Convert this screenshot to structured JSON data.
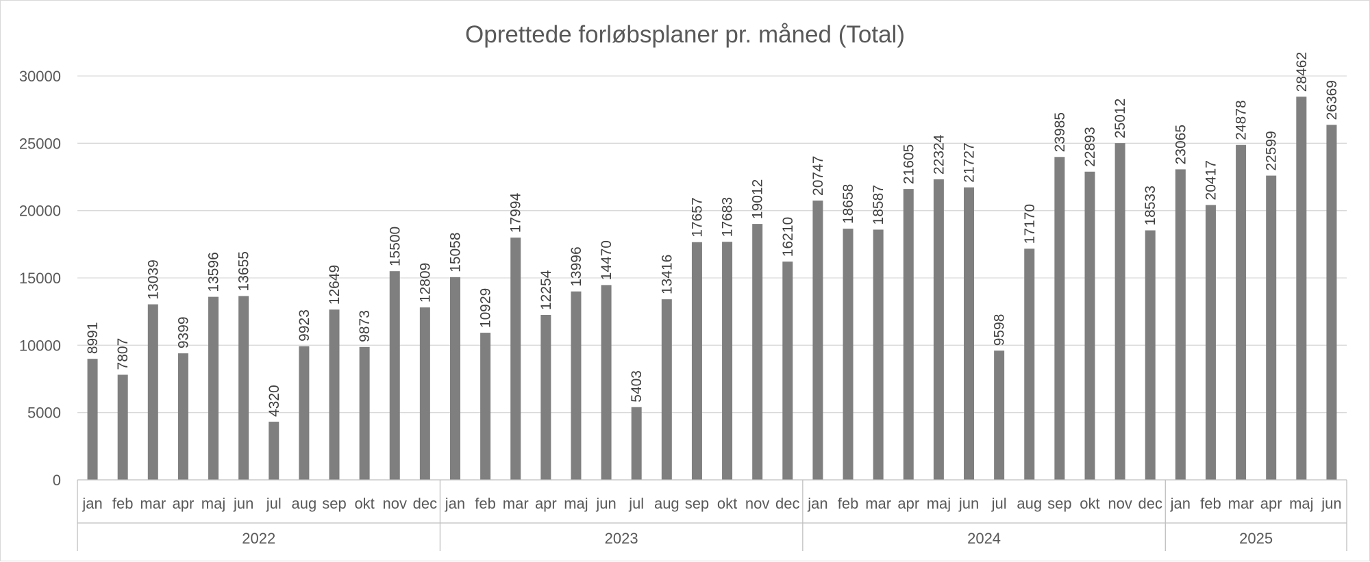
{
  "chart_data": {
    "type": "bar",
    "title": "Oprettede forløbsplaner pr. måned (Total)",
    "xlabel": "",
    "ylabel": "",
    "ylim": [
      0,
      30000
    ],
    "yticks": [
      "0",
      "5000",
      "10000",
      "15000",
      "20000",
      "25000",
      "30000"
    ],
    "grid": true,
    "legend": "none",
    "bar_color": "#7f7f7f",
    "years": [
      {
        "label": "2022",
        "months": [
          "jan",
          "feb",
          "mar",
          "apr",
          "maj",
          "jun",
          "jul",
          "aug",
          "sep",
          "okt",
          "nov",
          "dec"
        ]
      },
      {
        "label": "2023",
        "months": [
          "jan",
          "feb",
          "mar",
          "apr",
          "maj",
          "jun",
          "jul",
          "aug",
          "sep",
          "okt",
          "nov",
          "dec"
        ]
      },
      {
        "label": "2024",
        "months": [
          "jan",
          "feb",
          "mar",
          "apr",
          "maj",
          "jun",
          "jul",
          "aug",
          "sep",
          "okt",
          "nov",
          "dec"
        ]
      },
      {
        "label": "2025",
        "months": [
          "jan",
          "feb",
          "mar",
          "apr",
          "maj",
          "jun"
        ]
      }
    ],
    "values": [
      8991,
      7807,
      13039,
      9399,
      13596,
      13655,
      4320,
      9923,
      12649,
      9873,
      15500,
      12809,
      15058,
      10929,
      17994,
      12254,
      13996,
      14470,
      5403,
      13416,
      17657,
      17683,
      19012,
      16210,
      20747,
      18658,
      18587,
      21605,
      22324,
      21727,
      9598,
      17170,
      23985,
      22893,
      25012,
      18533,
      23065,
      20417,
      24878,
      22599,
      28462,
      26369
    ]
  }
}
